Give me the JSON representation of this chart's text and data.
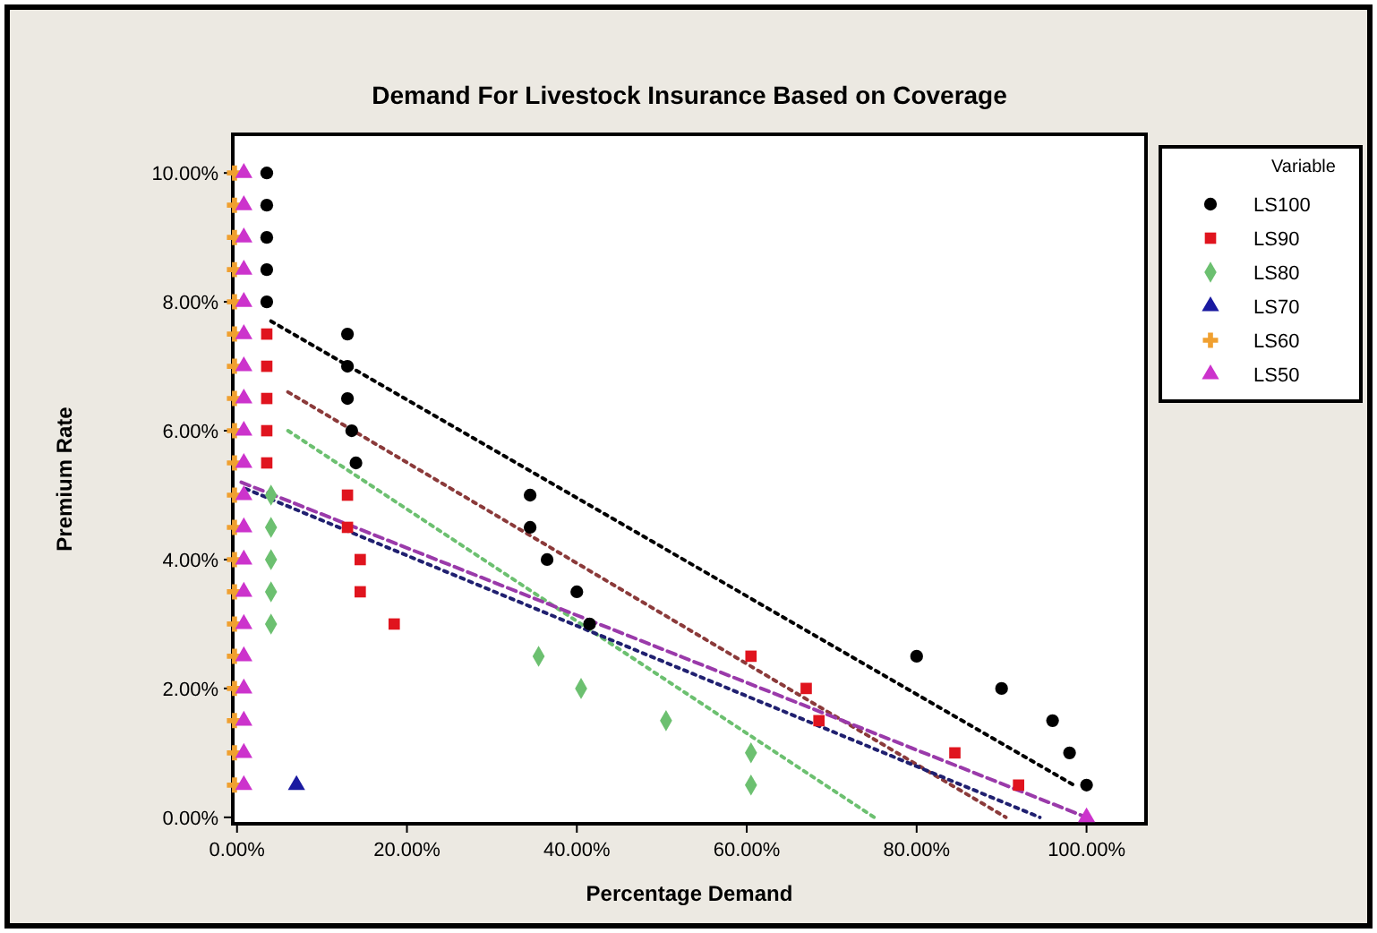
{
  "chart_data": {
    "type": "scatter",
    "title": "Demand For Livestock Insurance Based on Coverage",
    "xlabel": "Percentage Demand",
    "ylabel": "Premium Rate",
    "legend_title": "Variable",
    "legend": "top right",
    "grid": false,
    "xlim": [
      -0.5,
      107
    ],
    "ylim": [
      -0.1,
      10.6
    ],
    "xticks": [
      {
        "value": 0,
        "label": "0.00%"
      },
      {
        "value": 20,
        "label": "20.00%"
      },
      {
        "value": 40,
        "label": "40.00%"
      },
      {
        "value": 60,
        "label": "60.00%"
      },
      {
        "value": 80,
        "label": "80.00%"
      },
      {
        "value": 100,
        "label": "100.00%"
      }
    ],
    "yticks": [
      {
        "value": 0,
        "label": "0.00%"
      },
      {
        "value": 2,
        "label": "2.00%"
      },
      {
        "value": 4,
        "label": "4.00%"
      },
      {
        "value": 6,
        "label": "6.00%"
      },
      {
        "value": 8,
        "label": "8.00%"
      },
      {
        "value": 10,
        "label": "10.00%"
      }
    ],
    "series": [
      {
        "name": "LS100",
        "color": "#000000",
        "marker": "circle",
        "x": [
          3.5,
          3.5,
          3.5,
          3.5,
          3.5,
          13,
          13,
          13,
          13.5,
          14,
          34.5,
          34.5,
          36.5,
          40,
          41.5,
          80,
          90,
          96,
          98,
          100
        ],
        "values": [
          10,
          9.5,
          9,
          8.5,
          8,
          7.5,
          7,
          6.5,
          6,
          5.5,
          5,
          4.5,
          4,
          3.5,
          3,
          2.5,
          2,
          1.5,
          1,
          0.5
        ]
      },
      {
        "name": "LS90",
        "color": "#e0141e",
        "marker": "square",
        "x": [
          3.5,
          3.5,
          3.5,
          3.5,
          3.5,
          13,
          13,
          14.5,
          14.5,
          18.5,
          60.5,
          67,
          68.5,
          84.5,
          92
        ],
        "values": [
          7.5,
          7,
          6.5,
          6,
          5.5,
          5,
          4.5,
          4,
          3.5,
          3,
          2.5,
          2,
          1.5,
          1,
          0.5
        ]
      },
      {
        "name": "LS80",
        "color": "#6cc070",
        "marker": "diamond",
        "x": [
          4,
          4,
          4,
          4,
          4,
          35.5,
          40.5,
          50.5,
          60.5,
          60.5
        ],
        "values": [
          5,
          4.5,
          4,
          3.5,
          3,
          2.5,
          2,
          1.5,
          1,
          0.5
        ]
      },
      {
        "name": "LS70",
        "color": "#1a1aa0",
        "marker": "triangle",
        "x": [
          7
        ],
        "values": [
          0.5
        ]
      },
      {
        "name": "LS60",
        "color": "#f0a030",
        "marker": "cross",
        "x": [
          -0.3,
          -0.3,
          -0.3,
          -0.3,
          -0.3,
          -0.3,
          -0.3,
          -0.3,
          -0.3,
          -0.3,
          -0.3,
          -0.3,
          -0.3,
          -0.3,
          -0.3,
          -0.3,
          -0.3,
          -0.3,
          -0.3,
          -0.3
        ],
        "values": [
          10,
          9.5,
          9,
          8.5,
          8,
          7.5,
          7,
          6.5,
          6,
          5.5,
          5,
          4.5,
          4,
          3.5,
          3,
          2.5,
          2,
          1.5,
          1,
          0.5
        ]
      },
      {
        "name": "LS50",
        "color": "#cc33cc",
        "marker": "triangle",
        "x": [
          0.8,
          0.8,
          0.8,
          0.8,
          0.8,
          0.8,
          0.8,
          0.8,
          0.8,
          0.8,
          0.8,
          0.8,
          0.8,
          0.8,
          0.8,
          0.8,
          0.8,
          0.8,
          0.8,
          0.8,
          100
        ],
        "values": [
          10,
          9.5,
          9,
          8.5,
          8,
          7.5,
          7,
          6.5,
          6,
          5.5,
          5,
          4.5,
          4,
          3.5,
          3,
          2.5,
          2,
          1.5,
          1,
          0.5,
          0
        ]
      },
      {
        "type": "line",
        "color": "#000000",
        "line_style": "dotted",
        "x": [
          4,
          98.5
        ],
        "values": [
          7.7,
          0.5
        ]
      },
      {
        "type": "line",
        "color": "#8b3a3a",
        "line_style": "dotted",
        "x": [
          6,
          90.5
        ],
        "values": [
          6.6,
          0
        ]
      },
      {
        "type": "line",
        "color": "#6cc070",
        "line_style": "dotted",
        "x": [
          6,
          75
        ],
        "values": [
          6,
          0
        ]
      },
      {
        "type": "line",
        "color": "#202070",
        "line_style": "dotted",
        "x": [
          1,
          94.5
        ],
        "values": [
          5.1,
          0
        ]
      },
      {
        "type": "line",
        "color": "#9a3aaa",
        "line_style": "dashed",
        "x": [
          0.5,
          100
        ],
        "values": [
          5.2,
          0
        ]
      }
    ]
  }
}
